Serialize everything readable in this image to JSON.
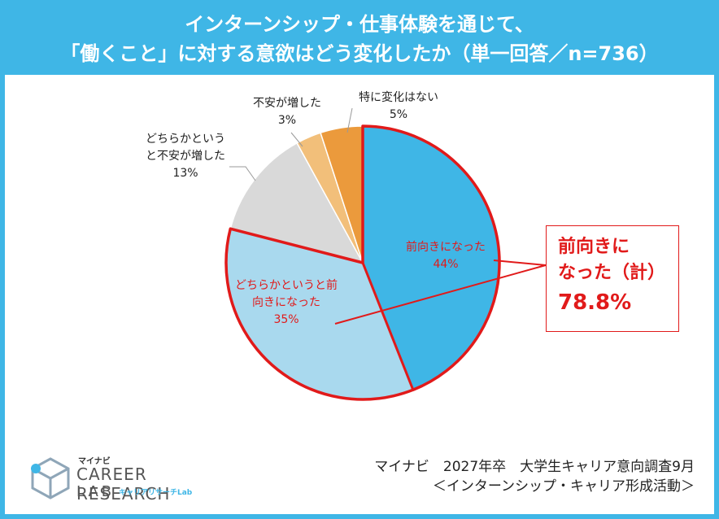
{
  "header": {
    "title_line1": "インターンシップ・仕事体験を通じて、",
    "title_line2": "「働くこと」に対する意欲はどう変化したか（単一回答／n=736）"
  },
  "chart_data": {
    "type": "pie",
    "title": "インターンシップ・仕事体験を通じて、「働くこと」に対する意欲はどう変化したか（単一回答／n=736）",
    "start": "12 o'clock",
    "direction": "clockwise",
    "slices": [
      {
        "label_lines": [
          "前向きになった"
        ],
        "value_text": "44%",
        "value": 44,
        "color": "#3fb6e6"
      },
      {
        "label_lines": [
          "どちらかというと前",
          "向きになった"
        ],
        "value_text": "35%",
        "value": 35,
        "color": "#a9d9ee"
      },
      {
        "label_lines": [
          "どちらかという",
          "と不安が増した"
        ],
        "value_text": "13%",
        "value": 13,
        "color": "#d9d9d9"
      },
      {
        "label_lines": [
          "不安が増した"
        ],
        "value_text": "3%",
        "value": 3,
        "color": "#f2bf7a"
      },
      {
        "label_lines": [
          "特に変化はない"
        ],
        "value_text": "5%",
        "value": 5,
        "color": "#eb9a3c"
      }
    ],
    "positive_callout": {
      "line1": "前向きに",
      "line2": "なった（計）",
      "value": "78.8%"
    },
    "highlight_color": "#e11a1a"
  },
  "logo": {
    "small": "マイナビ",
    "main": "CAREER RESEARCH",
    "lab": "LAB",
    "jp": "キャリアリサーチLab"
  },
  "source": {
    "line1": "マイナビ　2027年卒　大学生キャリア意向調査9月",
    "line2": "＜インターンシップ・キャリア形成活動＞"
  }
}
